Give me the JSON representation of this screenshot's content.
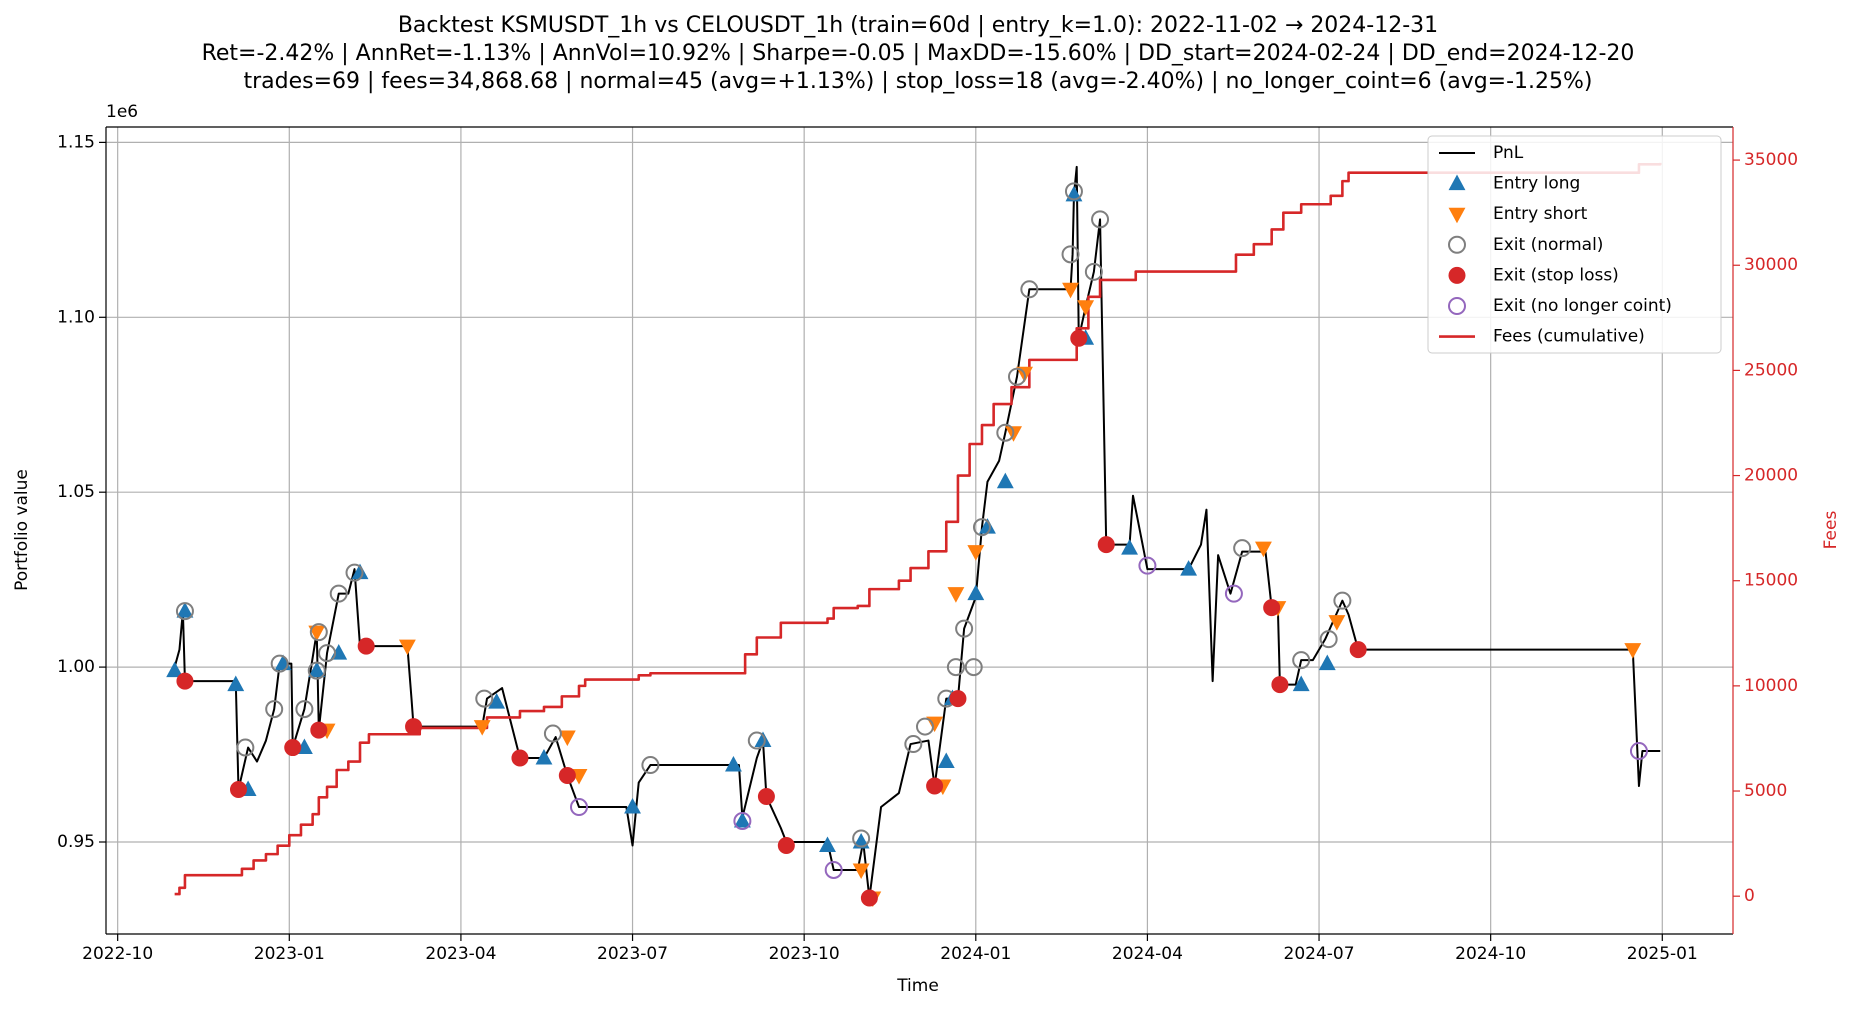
{
  "chart_data": {
    "type": "line",
    "title_lines": [
      "Backtest KSMUSDT_1h vs CELOUSDT_1h (train=60d | entry_k=1.0): 2022-11-02 → 2024-12-31",
      "Ret=-2.42% | AnnRet=-1.13% | AnnVol=10.92% | Sharpe=-0.05 | MaxDD=-15.60% | DD_start=2024-02-24 | DD_end=2024-12-20",
      "trades=69 | fees=34,868.68 | normal=45 (avg=+1.13%) | stop_loss=18 (avg=-2.40%) | no_longer_coint=6 (avg=-1.25%)"
    ],
    "xlabel": "Time",
    "ylabel": "Portfolio value",
    "y_offset_label": "1e6",
    "y2label": "Fees",
    "y2_color": "#d62728",
    "grid": true,
    "legend": "upper right",
    "xlim": [
      2022.733,
      2025.103
    ],
    "xticks": [
      {
        "value": 2022.75,
        "label": "2022-10"
      },
      {
        "value": 2023.0,
        "label": "2023-01"
      },
      {
        "value": 2023.25,
        "label": "2023-04"
      },
      {
        "value": 2023.5,
        "label": "2023-07"
      },
      {
        "value": 2023.75,
        "label": "2023-10"
      },
      {
        "value": 2024.0,
        "label": "2024-01"
      },
      {
        "value": 2024.25,
        "label": "2024-04"
      },
      {
        "value": 2024.5,
        "label": "2024-07"
      },
      {
        "value": 2024.75,
        "label": "2024-10"
      },
      {
        "value": 2025.0,
        "label": "2025-01"
      }
    ],
    "ylim": [
      0.9237,
      1.1544
    ],
    "yticks": [
      0.95,
      {
        "value": 1.0,
        "label": "1.00"
      },
      1.05,
      {
        "value": 1.1,
        "label": "1.10"
      },
      1.15
    ],
    "y2lim": [
      -1798,
      36573
    ],
    "y2ticks": [
      0,
      5000,
      10000,
      15000,
      20000,
      25000,
      30000,
      35000
    ],
    "series": [
      {
        "name": "PnL",
        "color": "#000000",
        "marker": "line",
        "x": [
          2022.833,
          2022.84,
          2022.845,
          2022.848,
          2022.922,
          2022.926,
          2022.94,
          2022.953,
          2022.966,
          2022.978,
          2022.986,
          2023.003,
          2023.005,
          2023.022,
          2023.04,
          2023.043,
          2023.055,
          2023.072,
          2023.086,
          2023.095,
          2023.103,
          2023.172,
          2023.178,
          2023.181,
          2023.281,
          2023.288,
          2023.31,
          2023.336,
          2023.371,
          2023.388,
          2023.405,
          2023.422,
          2023.491,
          2023.5,
          2023.509,
          2023.526,
          2023.655,
          2023.66,
          2023.681,
          2023.69,
          2023.695,
          2023.716,
          2023.724,
          2023.784,
          2023.793,
          2023.828,
          2023.836,
          2023.845,
          2023.862,
          2023.888,
          2023.905,
          2023.931,
          2023.94,
          2023.957,
          2023.974,
          2023.983,
          2024.0,
          2024.009,
          2024.017,
          2024.034,
          2024.043,
          2024.06,
          2024.078,
          2024.138,
          2024.141,
          2024.143,
          2024.147,
          2024.15,
          2024.16,
          2024.172,
          2024.181,
          2024.19,
          2024.224,
          2024.229,
          2024.25,
          2024.31,
          2024.328,
          2024.336,
          2024.345,
          2024.353,
          2024.371,
          2024.388,
          2024.422,
          2024.431,
          2024.44,
          2024.443,
          2024.466,
          2024.474,
          2024.491,
          2024.509,
          2024.534,
          2024.543,
          2024.557,
          2024.957,
          2024.966,
          2024.971,
          2024.997
        ],
        "values": [
          1.0,
          1.005,
          1.016,
          0.996,
          0.996,
          0.965,
          0.977,
          0.973,
          0.979,
          0.988,
          1.001,
          1.001,
          0.977,
          0.988,
          1.01,
          0.982,
          1.004,
          1.021,
          1.021,
          1.028,
          1.006,
          1.006,
          0.991,
          0.983,
          0.983,
          0.991,
          0.994,
          0.974,
          0.974,
          0.98,
          0.969,
          0.96,
          0.96,
          0.949,
          0.967,
          0.972,
          0.972,
          0.957,
          0.974,
          0.979,
          0.963,
          0.954,
          0.95,
          0.95,
          0.942,
          0.942,
          0.95,
          0.934,
          0.96,
          0.964,
          0.978,
          0.979,
          0.966,
          0.991,
          0.991,
          1.011,
          1.02,
          1.04,
          1.053,
          1.059,
          1.067,
          1.083,
          1.108,
          1.108,
          1.118,
          1.135,
          1.143,
          1.094,
          1.103,
          1.113,
          1.128,
          1.035,
          1.035,
          1.049,
          1.028,
          1.028,
          1.035,
          1.045,
          0.996,
          1.032,
          1.021,
          1.033,
          1.033,
          1.017,
          1.017,
          0.995,
          0.995,
          1.002,
          1.002,
          1.008,
          1.019,
          1.015,
          1.005,
          1.005,
          0.966,
          0.976,
          0.976
        ]
      },
      {
        "name": "Entry long",
        "color": "#1f77b4",
        "marker": "^",
        "filled": true,
        "x": [
          2022.833,
          2022.848,
          2022.922,
          2022.94,
          2022.991,
          2023.022,
          2023.04,
          2023.072,
          2023.103,
          2023.302,
          2023.371,
          2023.5,
          2023.647,
          2023.66,
          2023.69,
          2023.784,
          2023.833,
          2023.957,
          2023.966,
          2024.0,
          2024.017,
          2024.043,
          2024.143,
          2024.16,
          2024.224,
          2024.31,
          2024.474,
          2024.512
        ],
        "values": [
          0.999,
          1.016,
          0.995,
          0.965,
          1.001,
          0.977,
          0.999,
          1.004,
          1.027,
          0.99,
          0.974,
          0.96,
          0.972,
          0.956,
          0.979,
          0.949,
          0.95,
          0.973,
          0.991,
          1.021,
          1.04,
          1.053,
          1.135,
          1.094,
          1.034,
          1.028,
          0.995,
          1.001
        ]
      },
      {
        "name": "Entry short",
        "color": "#ff7f0e",
        "marker": "v",
        "filled": true,
        "x": [
          2023.04,
          2023.055,
          2023.172,
          2023.281,
          2023.405,
          2023.422,
          2023.833,
          2023.85,
          2023.94,
          2023.952,
          2023.971,
          2024.0,
          2024.055,
          2024.071,
          2024.138,
          2024.16,
          2024.419,
          2024.44,
          2024.526,
          2024.957
        ],
        "values": [
          1.01,
          0.982,
          1.006,
          0.983,
          0.98,
          0.969,
          0.942,
          0.934,
          0.984,
          0.966,
          1.021,
          1.033,
          1.067,
          1.084,
          1.108,
          1.103,
          1.034,
          1.017,
          1.013,
          1.005
        ]
      },
      {
        "name": "Exit (normal)",
        "color": "#7f7f7f",
        "marker": "o",
        "filled": false,
        "x": [
          2022.848,
          2022.936,
          2022.978,
          2022.986,
          2023.022,
          2023.04,
          2023.043,
          2023.055,
          2023.072,
          2023.095,
          2023.284,
          2023.384,
          2023.526,
          2023.681,
          2023.833,
          2023.909,
          2023.926,
          2023.957,
          2023.971,
          2023.983,
          2023.997,
          2024.009,
          2024.043,
          2024.06,
          2024.078,
          2024.138,
          2024.143,
          2024.172,
          2024.181,
          2024.388,
          2024.474,
          2024.514,
          2024.534
        ],
        "values": [
          1.016,
          0.977,
          0.988,
          1.001,
          0.988,
          0.999,
          1.01,
          1.004,
          1.021,
          1.027,
          0.991,
          0.981,
          0.972,
          0.979,
          0.951,
          0.978,
          0.983,
          0.991,
          1.0,
          1.011,
          1.0,
          1.04,
          1.067,
          1.083,
          1.108,
          1.118,
          1.136,
          1.113,
          1.128,
          1.034,
          1.002,
          1.008,
          1.019
        ]
      },
      {
        "name": "Exit (stop loss)",
        "color": "#d62728",
        "marker": "o",
        "filled": true,
        "x": [
          2022.848,
          2022.926,
          2023.005,
          2023.043,
          2023.112,
          2023.181,
          2023.336,
          2023.405,
          2023.695,
          2023.724,
          2023.845,
          2023.94,
          2023.974,
          2024.15,
          2024.19,
          2024.431,
          2024.443,
          2024.557
        ],
        "values": [
          0.996,
          0.965,
          0.977,
          0.982,
          1.006,
          0.983,
          0.974,
          0.969,
          0.963,
          0.949,
          0.934,
          0.966,
          0.991,
          1.094,
          1.035,
          1.017,
          0.995,
          1.005
        ]
      },
      {
        "name": "Exit (no longer coint)",
        "color": "#9467bd",
        "marker": "o",
        "filled": false,
        "x": [
          2023.422,
          2023.66,
          2023.793,
          2024.25,
          2024.376,
          2024.966
        ],
        "values": [
          0.96,
          0.956,
          0.942,
          1.029,
          1.021,
          0.976
        ]
      },
      {
        "name": "Fees (cumulative)",
        "color": "#d62728",
        "marker": "line",
        "axis": "y2",
        "drawstyle": "steps-post",
        "x": [
          2022.833,
          2022.84,
          2022.848,
          2022.922,
          2022.931,
          2022.948,
          2022.966,
          2022.983,
          2023.0,
          2023.017,
          2023.034,
          2023.043,
          2023.055,
          2023.069,
          2023.086,
          2023.103,
          2023.116,
          2023.181,
          2023.19,
          2023.281,
          2023.288,
          2023.336,
          2023.371,
          2023.397,
          2023.422,
          2023.431,
          2023.5,
          2023.509,
          2023.526,
          2023.655,
          2023.664,
          2023.681,
          2023.716,
          2023.784,
          2023.793,
          2023.828,
          2023.845,
          2023.888,
          2023.905,
          2023.931,
          2023.957,
          2023.974,
          2023.991,
          2024.009,
          2024.026,
          2024.052,
          2024.078,
          2024.138,
          2024.147,
          2024.164,
          2024.181,
          2024.233,
          2024.371,
          2024.379,
          2024.405,
          2024.431,
          2024.448,
          2024.474,
          2024.517,
          2024.534,
          2024.543,
          2024.957,
          2024.966,
          2024.997
        ],
        "values": [
          100,
          400,
          1000,
          1000,
          1300,
          1700,
          2000,
          2400,
          2900,
          3400,
          3900,
          4700,
          5200,
          6000,
          6400,
          7300,
          7700,
          7700,
          8000,
          8000,
          8500,
          8800,
          9000,
          9500,
          10000,
          10300,
          10300,
          10500,
          10600,
          10600,
          11500,
          12300,
          13000,
          13200,
          13700,
          13800,
          14600,
          15000,
          15600,
          16400,
          17800,
          20000,
          21500,
          22400,
          23400,
          24200,
          25500,
          25500,
          27000,
          28500,
          29300,
          29700,
          29700,
          30500,
          31000,
          31700,
          32500,
          32900,
          33300,
          34000,
          34400,
          34400,
          34800,
          34869
        ]
      }
    ]
  }
}
